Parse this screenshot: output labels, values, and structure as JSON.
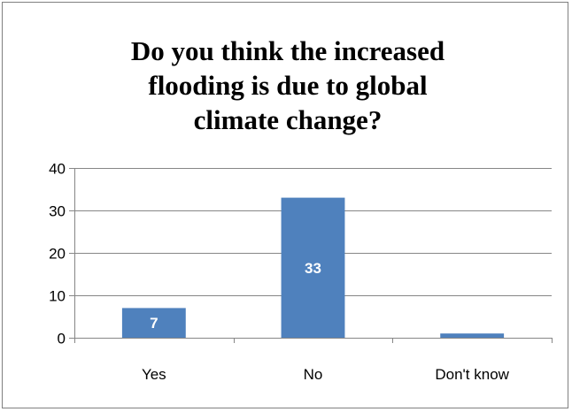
{
  "chart_data": {
    "type": "bar",
    "title": "Do you think the increased\nflooding is due to global\nclimate change?",
    "xlabel": "",
    "ylabel": "",
    "categories": [
      "Yes",
      "No",
      "Don't know"
    ],
    "values": [
      7,
      33,
      1
    ],
    "data_labels": [
      "7",
      "33",
      ""
    ],
    "ylim": [
      0,
      40
    ],
    "yticks": [
      0,
      10,
      20,
      30,
      40
    ],
    "grid": true,
    "legend": "none",
    "bar_color": "#4f81bd",
    "data_label_color": "#ffffff"
  }
}
